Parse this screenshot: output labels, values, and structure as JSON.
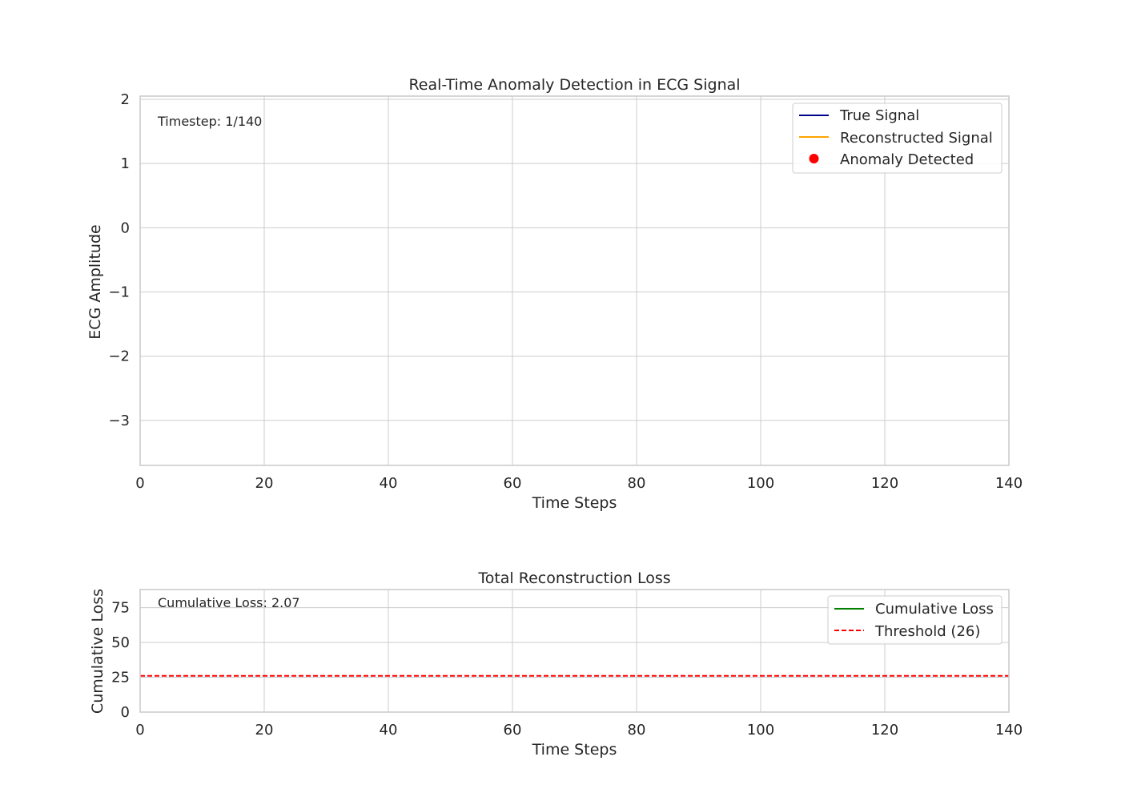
{
  "chart_data": [
    {
      "type": "line",
      "title": "Real-Time Anomaly Detection in ECG Signal",
      "xlabel": "Time Steps",
      "ylabel": "ECG Amplitude",
      "xlim": [
        0,
        140
      ],
      "ylim": [
        -3.7,
        2.05
      ],
      "x_ticks": [
        0,
        20,
        40,
        60,
        80,
        100,
        120,
        140
      ],
      "y_ticks": [
        2,
        1,
        0,
        -1,
        -2,
        -3
      ],
      "x_tick_labels": [
        "0",
        "20",
        "40",
        "60",
        "80",
        "100",
        "120",
        "140"
      ],
      "y_tick_labels": [
        "2",
        "1",
        "0",
        "−1",
        "−2",
        "−3"
      ],
      "grid": true,
      "legend_position": "top-right",
      "annotation": "Timestep: 1/140",
      "series": [
        {
          "name": "True Signal",
          "color": "#00008b",
          "kind": "line",
          "x": [],
          "y": []
        },
        {
          "name": "Reconstructed Signal",
          "color": "#ffa500",
          "kind": "line",
          "x": [],
          "y": []
        },
        {
          "name": "Anomaly Detected",
          "color": "#ff0000",
          "kind": "marker",
          "x": [],
          "y": []
        }
      ]
    },
    {
      "type": "line",
      "title": "Total Reconstruction Loss",
      "xlabel": "Time Steps",
      "ylabel": "Cumulative Loss",
      "xlim": [
        0,
        140
      ],
      "ylim": [
        0,
        88
      ],
      "x_ticks": [
        0,
        20,
        40,
        60,
        80,
        100,
        120,
        140
      ],
      "y_ticks": [
        0,
        25,
        50,
        75
      ],
      "x_tick_labels": [
        "0",
        "20",
        "40",
        "60",
        "80",
        "100",
        "120",
        "140"
      ],
      "y_tick_labels": [
        "0",
        "25",
        "50",
        "75"
      ],
      "grid": true,
      "legend_position": "top-right",
      "annotation": "Cumulative Loss: 2.07",
      "series": [
        {
          "name": "Cumulative Loss",
          "color": "#008000",
          "kind": "line",
          "x": [],
          "y": []
        },
        {
          "name": "Threshold (26)",
          "color": "#ff0000",
          "kind": "hline",
          "value": 26
        }
      ]
    }
  ]
}
